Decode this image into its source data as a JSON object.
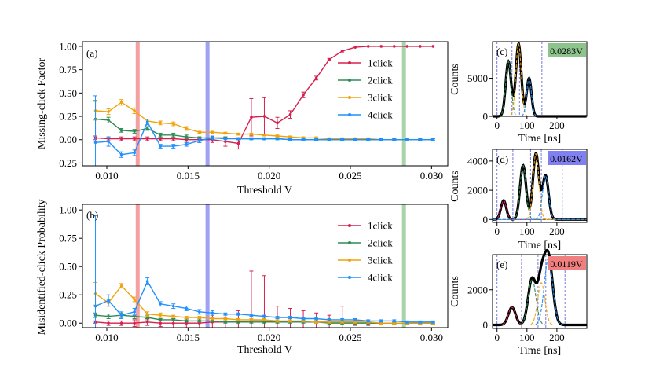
{
  "figure": {
    "xlabel": "Threshold V",
    "hist_xlabel": "Time [ns]",
    "hist_ylabel": "Counts"
  },
  "chart_data": [
    {
      "id": "a",
      "type": "line",
      "panel_label": "(a)",
      "title": "",
      "xlabel": "Threshold V",
      "ylabel": "Missing-click Factor",
      "xlim": [
        0.0085,
        0.031
      ],
      "ylim": [
        -0.28,
        1.05
      ],
      "xticks": [
        0.01,
        0.015,
        0.02,
        0.025,
        0.03
      ],
      "xtick_labels": [
        "0.010",
        "0.015",
        "0.020",
        "0.025",
        "0.030"
      ],
      "yticks": [
        -0.25,
        0.0,
        0.25,
        0.5,
        0.75,
        1.0
      ],
      "ytick_labels": [
        "−0.25",
        "0.00",
        "0.25",
        "0.50",
        "0.75",
        "1.00"
      ],
      "vlines": [
        {
          "x": 0.0119,
          "color": "#f08080"
        },
        {
          "x": 0.0162,
          "color": "#8080f0"
        },
        {
          "x": 0.0283,
          "color": "#8cc48c"
        }
      ],
      "legend_position": "right",
      "x": [
        0.0093,
        0.0101,
        0.0109,
        0.0117,
        0.0125,
        0.0133,
        0.0141,
        0.0149,
        0.0157,
        0.0165,
        0.0173,
        0.0181,
        0.0189,
        0.0197,
        0.0205,
        0.0213,
        0.0221,
        0.0229,
        0.0237,
        0.0245,
        0.0253,
        0.0261,
        0.0269,
        0.0277,
        0.0285,
        0.0293,
        0.0301
      ],
      "series": [
        {
          "name": "1click",
          "color": "#d6204e",
          "values": [
            0.02,
            0.01,
            0.01,
            0.01,
            0.01,
            0.01,
            0.01,
            0.0,
            0.0,
            0.0,
            -0.02,
            -0.04,
            0.24,
            0.25,
            0.18,
            0.27,
            0.48,
            0.66,
            0.86,
            0.95,
            0.99,
            1.0,
            1.0,
            1.0,
            1.0,
            1.0,
            1.0
          ],
          "errors": [
            0.02,
            0.02,
            0.02,
            0.02,
            0.02,
            0.02,
            0.02,
            0.03,
            0.03,
            0.03,
            0.05,
            0.06,
            0.2,
            0.2,
            0.06,
            0.04,
            0.03,
            0.02,
            0.01,
            0.01,
            0.0,
            0.0,
            0.0,
            0.0,
            0.0,
            0.0,
            0.0
          ]
        },
        {
          "name": "2click",
          "color": "#2e8b57",
          "values": [
            0.22,
            0.21,
            0.1,
            0.09,
            0.12,
            0.05,
            0.05,
            0.03,
            0.02,
            0.02,
            0.02,
            0.01,
            0.01,
            0.01,
            0.01,
            0.0,
            0.0,
            0.0,
            0.0,
            0.0,
            0.0,
            0.0,
            0.0,
            0.0,
            0.0,
            0.0,
            0.0
          ],
          "errors": [
            0.2,
            0.03,
            0.02,
            0.02,
            0.02,
            0.02,
            0.02,
            0.02,
            0.01,
            0.01,
            0.01,
            0.01,
            0.01,
            0.01,
            0.01,
            0.01,
            0.01,
            0.01,
            0.01,
            0.01,
            0.01,
            0.01,
            0.01,
            0.01,
            0.01,
            0.01,
            0.01
          ]
        },
        {
          "name": "3click",
          "color": "#f0a30a",
          "values": [
            0.31,
            0.3,
            0.4,
            0.31,
            0.2,
            0.18,
            0.17,
            0.12,
            0.08,
            0.08,
            0.07,
            0.06,
            0.06,
            0.05,
            0.04,
            0.03,
            0.02,
            0.02,
            0.01,
            0.01,
            0.01,
            0.01,
            0.0,
            0.0,
            0.0,
            0.0,
            0.0
          ],
          "errors": [
            0.1,
            0.03,
            0.03,
            0.03,
            0.02,
            0.02,
            0.02,
            0.02,
            0.01,
            0.01,
            0.01,
            0.01,
            0.01,
            0.01,
            0.01,
            0.01,
            0.01,
            0.01,
            0.01,
            0.01,
            0.01,
            0.01,
            0.01,
            0.01,
            0.01,
            0.01,
            0.01
          ]
        },
        {
          "name": "4click",
          "color": "#1e90ff",
          "values": [
            -0.03,
            -0.02,
            -0.16,
            -0.14,
            0.19,
            -0.07,
            -0.07,
            -0.05,
            -0.01,
            0.02,
            0.01,
            0.01,
            0.01,
            0.01,
            0.01,
            0.0,
            0.0,
            0.0,
            0.0,
            0.0,
            0.0,
            0.0,
            0.0,
            0.0,
            0.0,
            0.0,
            0.0
          ],
          "errors": [
            0.5,
            0.05,
            0.03,
            0.03,
            0.03,
            0.02,
            0.02,
            0.02,
            0.02,
            0.02,
            0.01,
            0.01,
            0.01,
            0.01,
            0.01,
            0.01,
            0.01,
            0.01,
            0.01,
            0.01,
            0.01,
            0.01,
            0.01,
            0.01,
            0.01,
            0.01,
            0.01
          ]
        }
      ]
    },
    {
      "id": "b",
      "type": "line",
      "panel_label": "(b)",
      "title": "",
      "xlabel": "Threshold V",
      "ylabel": "Misidentified-click Probability",
      "xlim": [
        0.0085,
        0.031
      ],
      "ylim": [
        -0.04,
        1.05
      ],
      "xticks": [
        0.01,
        0.015,
        0.02,
        0.025,
        0.03
      ],
      "xtick_labels": [
        "0.010",
        "0.015",
        "0.020",
        "0.025",
        "0.030"
      ],
      "yticks": [
        0.0,
        0.25,
        0.5,
        0.75,
        1.0
      ],
      "ytick_labels": [
        "0.00",
        "0.25",
        "0.50",
        "0.75",
        "1.00"
      ],
      "vlines": [
        {
          "x": 0.0119,
          "color": "#f08080"
        },
        {
          "x": 0.0162,
          "color": "#8080f0"
        },
        {
          "x": 0.0283,
          "color": "#8cc48c"
        }
      ],
      "legend_position": "right",
      "x": [
        0.0093,
        0.0101,
        0.0109,
        0.0117,
        0.0125,
        0.0133,
        0.0141,
        0.0149,
        0.0157,
        0.0165,
        0.0173,
        0.0181,
        0.0189,
        0.0197,
        0.0205,
        0.0213,
        0.0221,
        0.0229,
        0.0237,
        0.0245,
        0.0253,
        0.0261,
        0.0269,
        0.0277,
        0.0285,
        0.0293,
        0.0301
      ],
      "series": [
        {
          "name": "1click",
          "color": "#d6204e",
          "values": [
            0.01,
            0.0,
            0.0,
            0.0,
            0.01,
            0.0,
            0.0,
            0.0,
            0.0,
            0.01,
            0.01,
            0.01,
            0.02,
            0.02,
            0.01,
            0.01,
            0.01,
            0.01,
            0.01,
            0.01,
            0.01,
            0.0,
            0.0,
            0.0,
            0.0,
            0.0,
            0.0
          ],
          "errors": [
            0.01,
            0.02,
            0.02,
            0.03,
            0.03,
            0.03,
            0.04,
            0.04,
            0.05,
            0.06,
            0.07,
            0.1,
            0.44,
            0.4,
            0.14,
            0.12,
            0.1,
            0.08,
            0.06,
            0.14,
            0.03,
            0.02,
            0.01,
            0.01,
            0.01,
            0.01,
            0.01
          ]
        },
        {
          "name": "2click",
          "color": "#2e8b57",
          "values": [
            0.07,
            0.06,
            0.07,
            0.06,
            0.05,
            0.03,
            0.03,
            0.02,
            0.02,
            0.02,
            0.01,
            0.01,
            0.01,
            0.01,
            0.01,
            0.01,
            0.01,
            0.01,
            0.0,
            0.0,
            0.0,
            0.0,
            0.0,
            0.0,
            0.0,
            0.0,
            0.0
          ],
          "errors": [
            0.02,
            0.02,
            0.02,
            0.02,
            0.02,
            0.01,
            0.01,
            0.01,
            0.01,
            0.01,
            0.01,
            0.01,
            0.01,
            0.01,
            0.01,
            0.01,
            0.01,
            0.01,
            0.01,
            0.01,
            0.01,
            0.01,
            0.01,
            0.01,
            0.01,
            0.01,
            0.01
          ]
        },
        {
          "name": "3click",
          "color": "#f0a30a",
          "values": [
            0.26,
            0.18,
            0.33,
            0.21,
            0.08,
            0.07,
            0.06,
            0.05,
            0.05,
            0.04,
            0.04,
            0.03,
            0.03,
            0.03,
            0.02,
            0.02,
            0.02,
            0.01,
            0.01,
            0.01,
            0.01,
            0.01,
            0.0,
            0.0,
            0.0,
            0.0,
            0.0
          ],
          "errors": [
            0.1,
            0.03,
            0.02,
            0.02,
            0.02,
            0.02,
            0.01,
            0.01,
            0.01,
            0.01,
            0.01,
            0.01,
            0.01,
            0.01,
            0.01,
            0.01,
            0.01,
            0.01,
            0.01,
            0.01,
            0.01,
            0.01,
            0.01,
            0.01,
            0.01,
            0.01,
            0.01
          ]
        },
        {
          "name": "4click",
          "color": "#1e90ff",
          "values": [
            0.15,
            0.2,
            0.07,
            0.1,
            0.37,
            0.17,
            0.15,
            0.13,
            0.1,
            0.09,
            0.08,
            0.08,
            0.07,
            0.06,
            0.05,
            0.05,
            0.04,
            0.04,
            0.03,
            0.03,
            0.03,
            0.02,
            0.02,
            0.02,
            0.01,
            0.01,
            0.01
          ],
          "errors": [
            0.8,
            0.05,
            0.03,
            0.03,
            0.03,
            0.02,
            0.02,
            0.02,
            0.02,
            0.02,
            0.01,
            0.01,
            0.01,
            0.01,
            0.01,
            0.01,
            0.01,
            0.01,
            0.01,
            0.01,
            0.01,
            0.01,
            0.01,
            0.01,
            0.01,
            0.01,
            0.01
          ]
        }
      ]
    },
    {
      "id": "c",
      "type": "area",
      "panel_label": "(c)",
      "badge": "0.0283V",
      "badge_color": "#8cc48c",
      "title": "",
      "xlabel": "Time [ns]",
      "ylabel": "Counts",
      "xlim": [
        -15,
        300
      ],
      "ylim": [
        0,
        9800
      ],
      "xticks": [
        0,
        100,
        200
      ],
      "xtick_labels": [
        "0",
        "100",
        "200"
      ],
      "yticks": [
        0,
        5000
      ],
      "ytick_labels": [
        "0",
        "5000"
      ],
      "vlines": [
        0,
        50,
        75,
        150
      ],
      "peaks": [
        {
          "center": 38,
          "amplitude": 7200,
          "width": 9,
          "color": "#2e8b57"
        },
        {
          "center": 72,
          "amplitude": 9500,
          "width": 9,
          "color": "#f0a30a"
        },
        {
          "center": 107,
          "amplitude": 5000,
          "width": 8,
          "color": "#1e90ff"
        }
      ]
    },
    {
      "id": "d",
      "type": "area",
      "panel_label": "(d)",
      "badge": "0.0162V",
      "badge_color": "#8080f0",
      "title": "",
      "xlabel": "Time [ns]",
      "ylabel": "Counts",
      "xlim": [
        -15,
        300
      ],
      "ylim": [
        -200,
        4800
      ],
      "xticks": [
        0,
        100,
        200
      ],
      "xtick_labels": [
        "0",
        "100",
        "200"
      ],
      "yticks": [
        0,
        2000,
        4000
      ],
      "ytick_labels": [
        "0",
        "2000",
        "4000"
      ],
      "vlines": [
        0,
        53,
        112,
        148,
        218
      ],
      "peaks": [
        {
          "center": 22,
          "amplitude": 1300,
          "width": 9,
          "color": "#d6204e"
        },
        {
          "center": 87,
          "amplitude": 3700,
          "width": 10,
          "color": "#2e8b57"
        },
        {
          "center": 130,
          "amplitude": 4500,
          "width": 10,
          "color": "#f0a30a"
        },
        {
          "center": 162,
          "amplitude": 3000,
          "width": 10,
          "color": "#1e90ff"
        }
      ]
    },
    {
      "id": "e",
      "type": "area",
      "panel_label": "(e)",
      "badge": "0.0119V",
      "badge_color": "#f08080",
      "title": "",
      "xlabel": "Time [ns]",
      "ylabel": "Counts",
      "xlim": [
        -15,
        300
      ],
      "ylim": [
        -200,
        4000
      ],
      "xticks": [
        0,
        100,
        200
      ],
      "xtick_labels": [
        "0",
        "100",
        "200"
      ],
      "yticks": [
        0,
        2000
      ],
      "ytick_labels": [
        "0",
        "2000"
      ],
      "vlines": [
        0,
        82,
        137,
        163,
        227
      ],
      "peaks": [
        {
          "center": 50,
          "amplitude": 1000,
          "width": 12,
          "color": "#d6204e"
        },
        {
          "center": 117,
          "amplitude": 2600,
          "width": 13,
          "color": "#2e8b57"
        },
        {
          "center": 148,
          "amplitude": 2400,
          "width": 12,
          "color": "#f0a30a"
        },
        {
          "center": 172,
          "amplitude": 3800,
          "width": 14,
          "color": "#1e90ff"
        }
      ]
    }
  ]
}
